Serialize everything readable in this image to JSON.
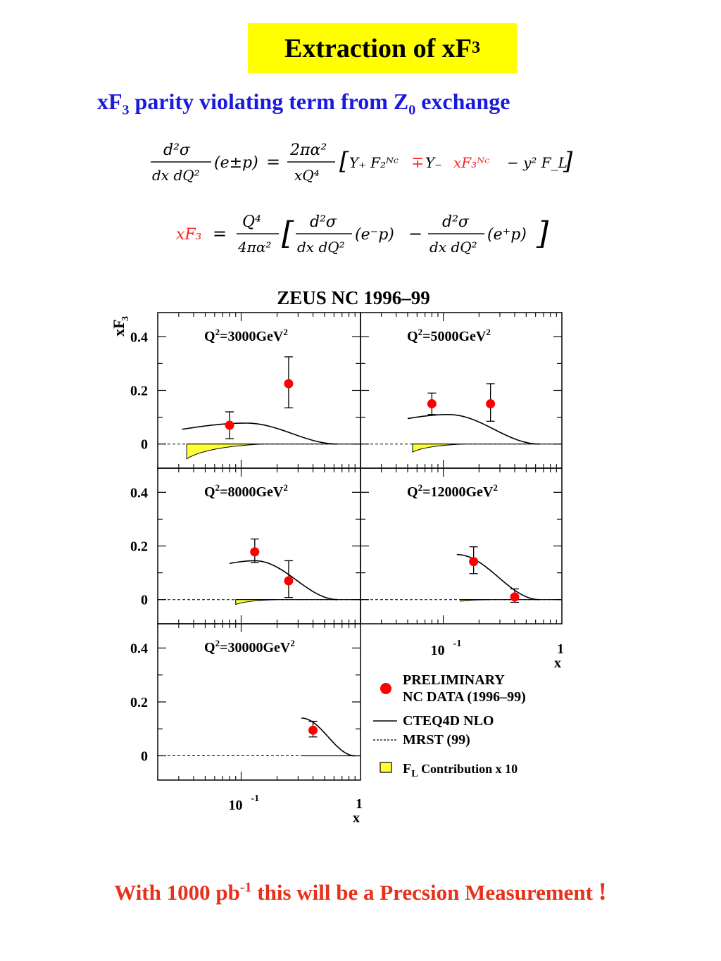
{
  "slide": {
    "title": "Extraction of  xF",
    "title_sub": "3",
    "subtitle_pre": "xF",
    "subtitle_sub1": "3",
    "subtitle_mid": "  parity violating term from Z",
    "subtitle_sub2": "0",
    "subtitle_post": " exchange",
    "footer_pre": "With 1000 pb",
    "footer_sup": "-1",
    "footer_post": " this will be a Precsion Measurement ",
    "footer_excl": "!"
  },
  "formula1": {
    "lhs_num": "d²σ",
    "lhs_den": "dx dQ²",
    "lhs_arg": "(e±p)",
    "eq": "=",
    "rhs_num": "2πα²",
    "rhs_den": "xQ⁴",
    "bracket_open": "[",
    "term1": "Y₊ F₂ᴺᶜ",
    "mp": "∓",
    "term2": "Y₋",
    "term3": "xF₃ᴺᶜ",
    "term4": "− y² F_L",
    "bracket_close": "]"
  },
  "formula2": {
    "lhs": "xF₃",
    "eq": "=",
    "pref_num": "Q⁴",
    "pref_den": "4πα²",
    "bracket_open": "[",
    "frac1_num": "d²σ",
    "frac1_den": "dx dQ²",
    "arg1": "(e⁻p)",
    "minus": "−",
    "frac2_num": "d²σ",
    "frac2_den": "dx dQ²",
    "arg2": "(e⁺p)",
    "bracket_close": "]"
  },
  "colors": {
    "title_bg": "#ffff00",
    "subtitle": "#1a1adc",
    "footer": "#e8301a",
    "formula_highlight": "#ff2020",
    "data_point": "#ff0000",
    "fl_fill": "#ffff33"
  },
  "chart_data": {
    "type": "scatter",
    "title": "ZEUS NC 1996–99",
    "ylabel": "xF",
    "ylabel_sub": "3",
    "xlabel": "x",
    "x_scale": "log",
    "xlim": [
      0.02,
      1.0
    ],
    "ylim": [
      -0.09,
      0.49
    ],
    "y_ticks": [
      "0",
      "0.2",
      "0.4"
    ],
    "x_tick_labels": {
      "decade": "10",
      "decade_exp": "-1",
      "one": "1"
    },
    "legend": {
      "placement": "bottom-right",
      "entries": [
        {
          "label1": "PRELIMINARY",
          "label2": "NC DATA (1996–99)",
          "style": "point"
        },
        {
          "label1": "CTEQ4D NLO",
          "style": "solid"
        },
        {
          "label1": "MRST (99)",
          "style": "dashed"
        },
        {
          "label1": "F",
          "label_sub": "L",
          "label_post": " Contribution x 10",
          "style": "fill"
        }
      ]
    },
    "panels": [
      {
        "label_pre": "Q",
        "label_sup": "2",
        "label_post": "=3000GeV",
        "label_sup2": "2",
        "points": [
          {
            "x": 0.08,
            "y": 0.07,
            "err_low": 0.05,
            "err_high": 0.05
          },
          {
            "x": 0.25,
            "y": 0.225,
            "err_low": 0.09,
            "err_high": 0.1
          }
        ],
        "cteq": {
          "x_start": 0.032,
          "x_end": 0.65,
          "y_start": 0.055,
          "y_peak": 0.078,
          "x_peak": 0.11
        },
        "fl": {
          "x_start": 0.035,
          "x_end": 0.15,
          "depth": -0.055
        }
      },
      {
        "label_pre": "Q",
        "label_sup": "2",
        "label_post": "=5000GeV",
        "label_sup2": "2",
        "points": [
          {
            "x": 0.08,
            "y": 0.15,
            "err_low": 0.04,
            "err_high": 0.04
          },
          {
            "x": 0.25,
            "y": 0.15,
            "err_low": 0.065,
            "err_high": 0.075
          }
        ],
        "cteq": {
          "x_start": 0.05,
          "x_end": 0.65,
          "y_start": 0.095,
          "y_peak": 0.11,
          "x_peak": 0.11
        },
        "fl": {
          "x_start": 0.055,
          "x_end": 0.15,
          "depth": -0.03
        }
      },
      {
        "label_pre": "Q",
        "label_sup": "2",
        "label_post": "=8000GeV",
        "label_sup2": "2",
        "points": [
          {
            "x": 0.13,
            "y": 0.178,
            "err_low": 0.04,
            "err_high": 0.048
          },
          {
            "x": 0.25,
            "y": 0.07,
            "err_low": 0.062,
            "err_high": 0.075
          }
        ],
        "cteq": {
          "x_start": 0.08,
          "x_end": 0.65,
          "y_start": 0.135,
          "y_peak": 0.145,
          "x_peak": 0.13
        },
        "fl": {
          "x_start": 0.09,
          "x_end": 0.2,
          "depth": -0.018
        }
      },
      {
        "label_pre": "Q",
        "label_sup": "2",
        "label_post": "=12000GeV",
        "label_sup2": "2",
        "points": [
          {
            "x": 0.18,
            "y": 0.142,
            "err_low": 0.045,
            "err_high": 0.055
          },
          {
            "x": 0.4,
            "y": 0.01,
            "err_low": 0.02,
            "err_high": 0.03
          }
        ],
        "cteq": {
          "x_start": 0.13,
          "x_end": 0.65,
          "y_start": 0.168,
          "y_peak": 0.168,
          "x_peak": 0.13
        },
        "fl": {
          "x_start": 0.14,
          "x_end": 0.25,
          "depth": -0.006
        }
      },
      {
        "label_pre": "Q",
        "label_sup": "2",
        "label_post": "=30000GeV",
        "label_sup2": "2",
        "points": [
          {
            "x": 0.4,
            "y": 0.095,
            "err_low": 0.025,
            "err_high": 0.033
          }
        ],
        "cteq": {
          "x_start": 0.32,
          "x_end": 0.9,
          "y_start": 0.14,
          "y_peak": 0.14,
          "x_peak": 0.32
        },
        "fl": null
      }
    ]
  }
}
